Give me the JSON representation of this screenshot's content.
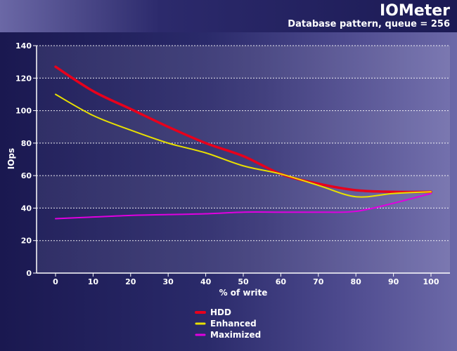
{
  "chart_data": {
    "type": "line",
    "title": "IOMeter",
    "subtitle": "Database pattern, queue = 256",
    "xlabel": "% of write",
    "ylabel": "IOps",
    "x": [
      0,
      10,
      20,
      30,
      40,
      50,
      60,
      70,
      80,
      90,
      100
    ],
    "ylim": [
      0,
      140
    ],
    "yticks": [
      0,
      20,
      40,
      60,
      80,
      100,
      120,
      140
    ],
    "grid": true,
    "legend_position": "bottom-center",
    "series": [
      {
        "name": "HDD",
        "color": "#e8001c",
        "values": [
          127,
          112,
          101,
          90,
          80,
          72,
          61,
          55,
          51,
          50,
          50
        ]
      },
      {
        "name": "Enhanced",
        "color": "#e8e000",
        "values": [
          110,
          97,
          88,
          80,
          74,
          66,
          61,
          54,
          47,
          49,
          50
        ]
      },
      {
        "name": "Maximized",
        "color": "#e000e0",
        "values": [
          33.5,
          34.5,
          35.5,
          36,
          36.5,
          37.5,
          37.5,
          37.5,
          38,
          43,
          49
        ]
      }
    ]
  }
}
